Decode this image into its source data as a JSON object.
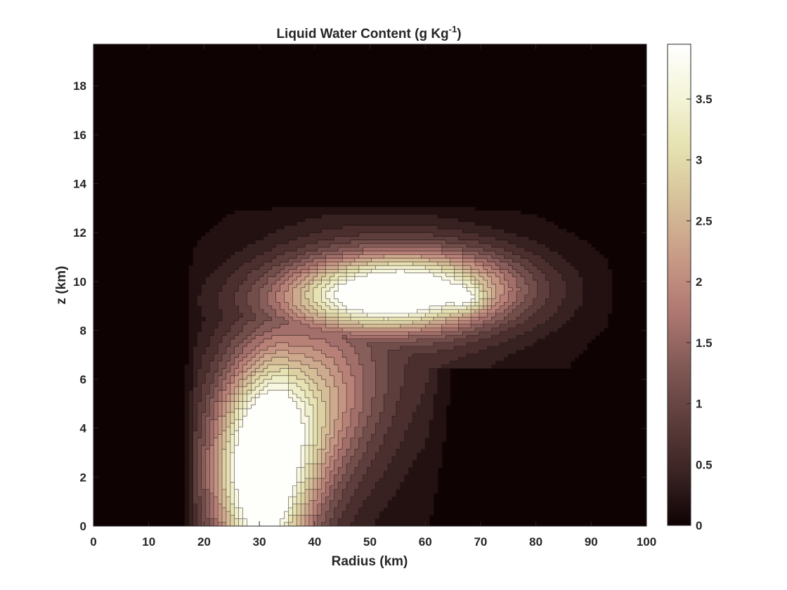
{
  "chart_data": {
    "type": "heatmap",
    "subtype": "filled-contour",
    "title": "Liquid Water Content (g Kg",
    "title_superscript": "-1",
    "title_close": ")",
    "xlabel": "Radius (km)",
    "ylabel": "z (km)",
    "xlim": [
      0,
      100
    ],
    "ylim": [
      0,
      19.7
    ],
    "x_ticks": [
      0,
      10,
      20,
      30,
      40,
      50,
      60,
      70,
      80,
      90,
      100
    ],
    "y_ticks": [
      0,
      2,
      4,
      6,
      8,
      10,
      12,
      14,
      16,
      18
    ],
    "colorbar": {
      "range": [
        0,
        3.95
      ],
      "ticks": [
        0,
        0.5,
        1,
        1.5,
        2,
        2.5,
        3,
        3.5
      ],
      "colormap": "pink",
      "colors": [
        "#0f0203",
        "#3b2424",
        "#5e3e3c",
        "#825a56",
        "#b07872",
        "#c89a86",
        "#d5be98",
        "#e4e0ae",
        "#f4f4d8",
        "#ffffff"
      ]
    },
    "contour_levels": [
      0.1,
      0.3,
      0.5,
      0.75,
      1.0,
      1.25,
      1.5,
      1.75,
      2.0,
      2.25,
      2.5,
      2.75,
      3.0,
      3.25,
      3.5,
      3.75
    ],
    "field_features": [
      {
        "feature": "lower updraft column maximum",
        "x_km": 30.5,
        "z_km": 1.6,
        "max_value": 3.9
      },
      {
        "feature": "upper anvil outflow maximum",
        "x_km": 60,
        "z_km": 9.8,
        "max_value": 3.9
      },
      {
        "feature": "secondary upper peak",
        "x_km": 67,
        "z_km": 9.3,
        "max_value": 3.95
      }
    ],
    "grid": false,
    "legend": "none"
  }
}
